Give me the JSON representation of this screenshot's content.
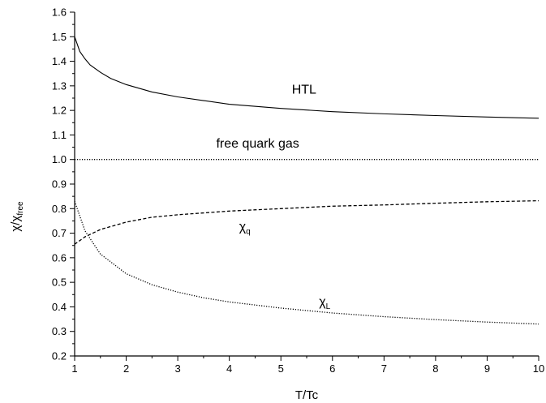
{
  "chart_data": {
    "type": "line",
    "title": "",
    "xlabel": "T/Tc",
    "ylabel": {
      "base": "χ/χ",
      "sub": "free"
    },
    "xlim": [
      1,
      10
    ],
    "ylim": [
      0.2,
      1.6
    ],
    "xticks": [
      "1",
      "2",
      "3",
      "4",
      "5",
      "6",
      "7",
      "8",
      "9",
      "10"
    ],
    "xtick_values": [
      1,
      2,
      3,
      4,
      5,
      6,
      7,
      8,
      9,
      10
    ],
    "yticks": [
      "0.2",
      "0.3",
      "0.4",
      "0.5",
      "0.6",
      "0.7",
      "0.8",
      "0.9",
      "1.0",
      "1.1",
      "1.2",
      "1.3",
      "1.4",
      "1.5",
      "1.6"
    ],
    "ytick_values": [
      0.2,
      0.3,
      0.4,
      0.5,
      0.6,
      0.7,
      0.8,
      0.9,
      1.0,
      1.1,
      1.2,
      1.3,
      1.4,
      1.5,
      1.6
    ],
    "grid": false,
    "series": [
      {
        "name": "HTL",
        "style": "solid",
        "color": "#000000",
        "x": [
          1.0,
          1.1,
          1.2,
          1.3,
          1.5,
          1.7,
          2.0,
          2.5,
          3.0,
          3.5,
          4.0,
          5.0,
          6.0,
          7.0,
          8.0,
          9.0,
          10.0
        ],
        "y": [
          1.5,
          1.44,
          1.41,
          1.385,
          1.355,
          1.33,
          1.305,
          1.275,
          1.255,
          1.24,
          1.225,
          1.208,
          1.195,
          1.186,
          1.179,
          1.173,
          1.168
        ]
      },
      {
        "name": "free quark gas",
        "style": "dotted",
        "color": "#000000",
        "x": [
          1.0,
          10.0
        ],
        "y": [
          1.0,
          1.0
        ]
      },
      {
        "name": "χq",
        "label": {
          "base": "χ",
          "sub": "q"
        },
        "style": "dashed",
        "color": "#000000",
        "x": [
          1.0,
          1.2,
          1.5,
          2.0,
          2.5,
          3.0,
          4.0,
          5.0,
          6.0,
          7.0,
          8.0,
          9.0,
          10.0
        ],
        "y": [
          0.655,
          0.685,
          0.715,
          0.745,
          0.765,
          0.775,
          0.79,
          0.8,
          0.81,
          0.815,
          0.822,
          0.828,
          0.832
        ]
      },
      {
        "name": "χL",
        "label": {
          "base": "χ",
          "sub": "L"
        },
        "style": "dotted",
        "color": "#000000",
        "x": [
          1.0,
          1.2,
          1.5,
          2.0,
          2.5,
          3.0,
          3.5,
          4.0,
          5.0,
          6.0,
          7.0,
          8.0,
          9.0,
          10.0
        ],
        "y": [
          0.83,
          0.71,
          0.615,
          0.535,
          0.49,
          0.46,
          0.437,
          0.42,
          0.395,
          0.375,
          0.36,
          0.348,
          0.338,
          0.33
        ]
      }
    ],
    "annotations": [
      {
        "id": "htl",
        "base": "HTL",
        "sub": "",
        "x": 5.45,
        "y": 1.268
      },
      {
        "id": "free",
        "base": "free quark gas",
        "sub": "",
        "x": 4.55,
        "y": 1.048
      },
      {
        "id": "chiq",
        "base": "χ",
        "sub": "q",
        "x": 4.3,
        "y": 0.71
      },
      {
        "id": "chil",
        "base": "χ",
        "sub": "L",
        "x": 5.85,
        "y": 0.405
      }
    ]
  }
}
